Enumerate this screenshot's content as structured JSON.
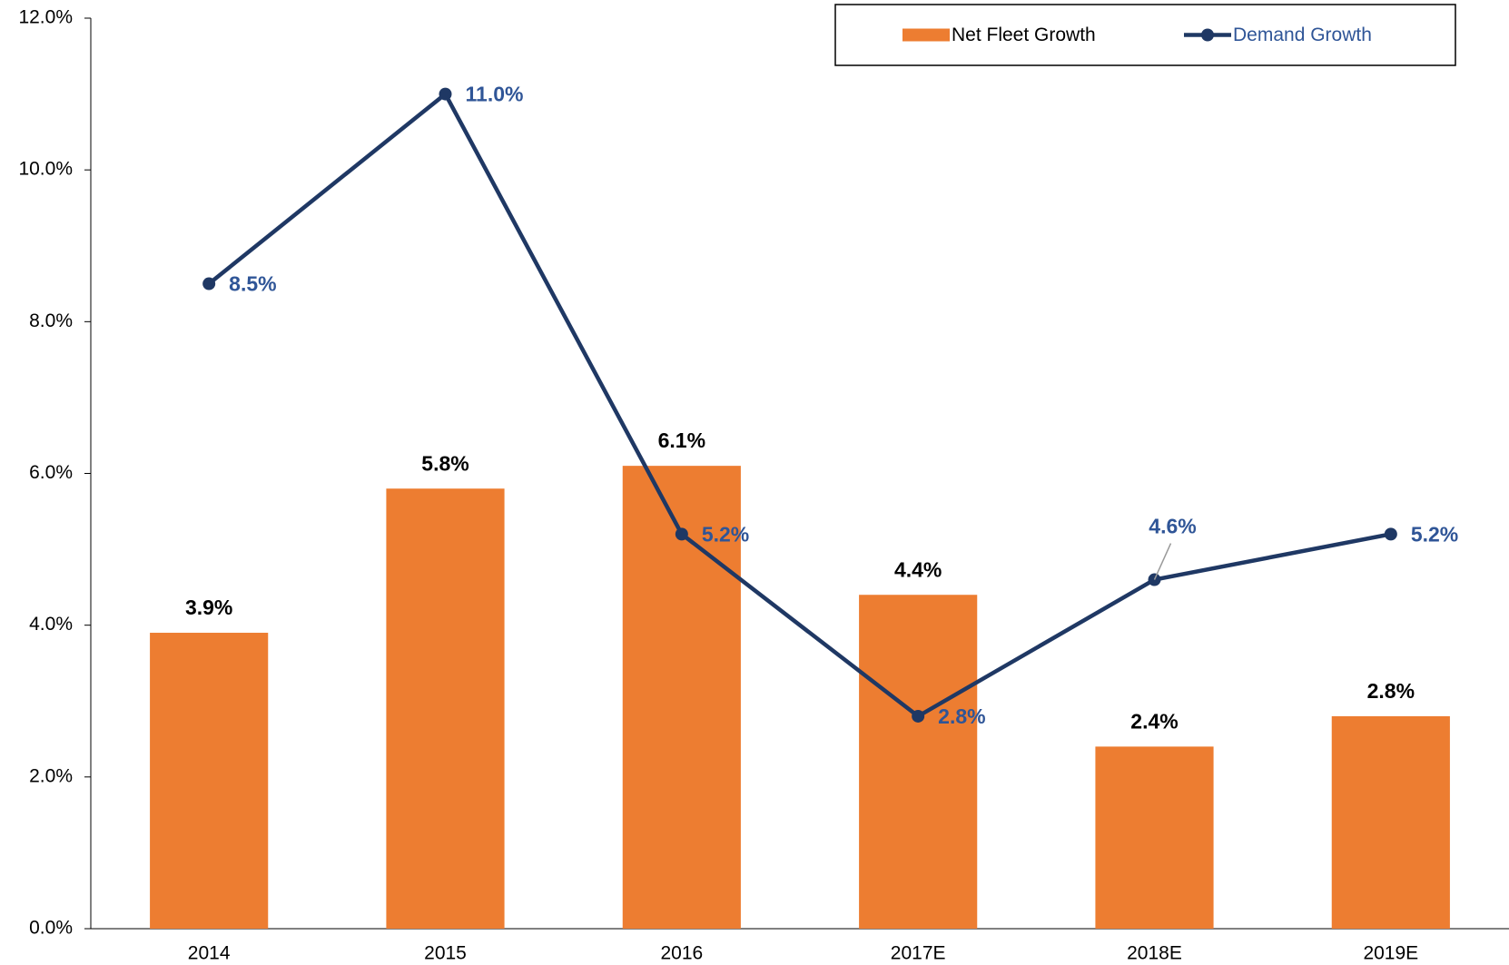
{
  "chart_data": {
    "type": "bar-line",
    "categories": [
      "2014",
      "2015",
      "2016",
      "2017E",
      "2018E",
      "2019E"
    ],
    "series": [
      {
        "name": "Net Fleet Growth",
        "type": "bar",
        "color": "#ed7d31",
        "values": [
          3.9,
          5.8,
          6.1,
          4.4,
          2.4,
          2.8
        ],
        "value_labels": [
          "3.9%",
          "5.8%",
          "6.1%",
          "4.4%",
          "2.4%",
          "2.8%"
        ]
      },
      {
        "name": "Demand Growth",
        "type": "line",
        "color": "#1f3864",
        "values": [
          8.5,
          11.0,
          5.2,
          2.8,
          4.6,
          5.2
        ],
        "value_labels": [
          "8.5%",
          "11.0%",
          "5.2%",
          "2.8%",
          "4.6%",
          "5.2%"
        ]
      }
    ],
    "ylim": [
      0,
      12
    ],
    "yticks": [
      {
        "value": 0,
        "label": "0.0%"
      },
      {
        "value": 2,
        "label": "2.0%"
      },
      {
        "value": 4,
        "label": "4.0%"
      },
      {
        "value": 6,
        "label": "6.0%"
      },
      {
        "value": 8,
        "label": "8.0%"
      },
      {
        "value": 10,
        "label": "10.0%"
      },
      {
        "value": 12,
        "label": "12.0%"
      }
    ],
    "legend": "top-right"
  }
}
